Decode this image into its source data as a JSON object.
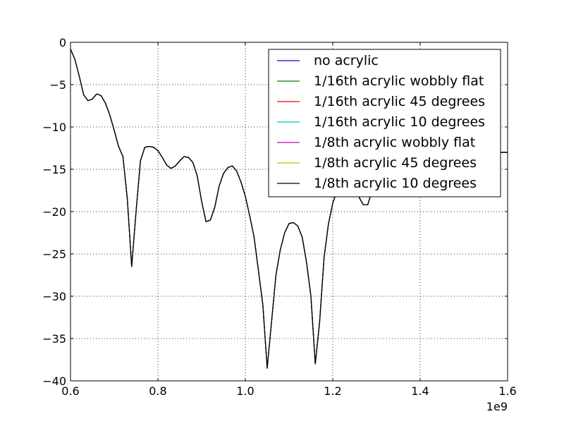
{
  "chart_data": {
    "type": "line",
    "title": "",
    "xlabel": "",
    "ylabel": "",
    "x_offset_label": "1e9",
    "xlim": [
      0.6,
      1.6
    ],
    "ylim": [
      -40,
      0
    ],
    "x_ticks": [
      0.6,
      0.8,
      1.0,
      1.2,
      1.4,
      1.6
    ],
    "x_tick_labels": [
      "0.6",
      "0.8",
      "1.0",
      "1.2",
      "1.4",
      "1.6"
    ],
    "y_ticks": [
      0,
      -5,
      -10,
      -15,
      -20,
      -25,
      -30,
      -35,
      -40
    ],
    "y_tick_labels": [
      "0",
      "−5",
      "−10",
      "−15",
      "−20",
      "−25",
      "−30",
      "−35",
      "−40"
    ],
    "grid": true,
    "legend_position": "top-right",
    "series": [
      {
        "name": "no acrylic",
        "color": "#0000ff"
      },
      {
        "name": "1/16th acrylic wobbly flat",
        "color": "#008000"
      },
      {
        "name": "1/16th acrylic 45 degrees",
        "color": "#ff0000"
      },
      {
        "name": "1/16th acrylic 10 degrees",
        "color": "#00bfbf"
      },
      {
        "name": "1/8th acrylic wobbly flat",
        "color": "#bf00bf"
      },
      {
        "name": "1/8th acrylic 45 degrees",
        "color": "#bfbf00"
      },
      {
        "name": "1/8th acrylic 10 degrees",
        "color": "#000000"
      }
    ],
    "x": [
      0.6,
      0.61,
      0.62,
      0.63,
      0.64,
      0.65,
      0.66,
      0.67,
      0.68,
      0.69,
      0.7,
      0.71,
      0.72,
      0.73,
      0.74,
      0.75,
      0.76,
      0.77,
      0.78,
      0.79,
      0.8,
      0.81,
      0.82,
      0.83,
      0.84,
      0.85,
      0.86,
      0.87,
      0.88,
      0.89,
      0.9,
      0.91,
      0.92,
      0.93,
      0.94,
      0.95,
      0.96,
      0.97,
      0.98,
      0.99,
      1.0,
      1.01,
      1.02,
      1.03,
      1.04,
      1.05,
      1.06,
      1.07,
      1.08,
      1.09,
      1.1,
      1.11,
      1.12,
      1.13,
      1.14,
      1.15,
      1.16,
      1.17,
      1.18,
      1.19,
      1.2,
      1.21,
      1.22,
      1.23,
      1.24,
      1.25,
      1.26,
      1.27,
      1.28,
      1.29,
      1.3,
      1.31,
      1.32,
      1.33,
      1.34,
      1.35,
      1.355,
      1.36,
      1.37,
      1.38,
      1.39,
      1.4,
      1.41,
      1.42,
      1.43,
      1.44,
      1.45,
      1.46,
      1.47,
      1.48,
      1.49,
      1.5,
      1.51,
      1.52,
      1.53,
      1.54,
      1.55,
      1.56,
      1.57,
      1.58,
      1.59,
      1.6
    ],
    "values": [
      -0.8,
      -2.0,
      -4.0,
      -6.2,
      -6.9,
      -6.7,
      -6.1,
      -6.3,
      -7.2,
      -8.6,
      -10.4,
      -12.3,
      -13.5,
      -18.5,
      -26.5,
      -20.0,
      -14.0,
      -12.4,
      -12.3,
      -12.4,
      -12.8,
      -13.6,
      -14.5,
      -14.9,
      -14.6,
      -14.0,
      -13.5,
      -13.6,
      -14.2,
      -15.8,
      -18.8,
      -21.2,
      -21.0,
      -19.5,
      -17.0,
      -15.5,
      -14.8,
      -14.6,
      -15.2,
      -16.5,
      -18.2,
      -20.5,
      -23.0,
      -27.0,
      -31.0,
      -38.5,
      -33.0,
      -27.5,
      -24.5,
      -22.5,
      -21.4,
      -21.3,
      -21.7,
      -23.0,
      -26.0,
      -30.0,
      -38.0,
      -33.0,
      -25.5,
      -21.5,
      -19.0,
      -17.5,
      -16.8,
      -16.5,
      -16.7,
      -17.3,
      -18.3,
      -19.2,
      -19.2,
      -17.5,
      -14.2,
      -13.0,
      -13.0,
      -13.0,
      -13.0,
      -13.0,
      -13.0,
      -13.0,
      -13.0,
      -13.0,
      -13.0,
      -13.0,
      -13.0,
      -13.0,
      -13.0,
      -13.0,
      -13.0,
      -13.0,
      -13.0,
      -13.0,
      -13.0,
      -13.0,
      -13.0,
      -13.0,
      -13.0,
      -13.0,
      -13.0,
      -13.0,
      -13.0,
      -13.0,
      -13.0,
      -13.0
    ]
  }
}
